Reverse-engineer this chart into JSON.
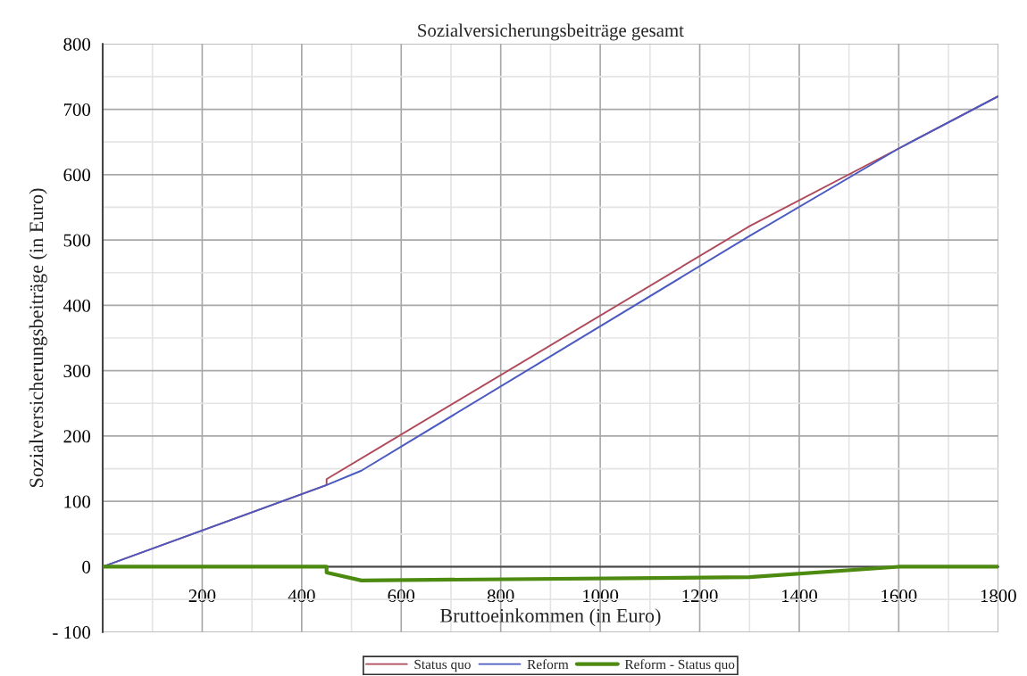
{
  "chart_data": {
    "type": "line",
    "title": "Sozialversicherungsbeiträge gesamt",
    "xlabel": "Bruttoeinkommen (in Euro)",
    "ylabel": "Sozialversicherungsbeiträge (in Euro)",
    "series": [
      {
        "name": "Status quo",
        "color": "#b04a5a",
        "x": [
          0,
          450,
          450,
          1300,
          1600,
          1800
        ],
        "values": [
          0,
          125,
          134,
          521,
          640,
          720
        ]
      },
      {
        "name": "Reform",
        "color": "#4a5ac0",
        "x": [
          0,
          450,
          520,
          1300,
          1600,
          1800
        ],
        "values": [
          0,
          125,
          147,
          506,
          640,
          720
        ]
      },
      {
        "name": "Reform - Status quo",
        "color": "#4c8a10",
        "x": [
          0,
          450,
          450,
          520,
          1300,
          1600,
          1800
        ],
        "values": [
          0,
          0,
          -9,
          -21,
          -16,
          0,
          0
        ]
      }
    ],
    "xlim": [
      0,
      1800
    ],
    "xticks": [
      {
        "value": 0,
        "label": null
      },
      200,
      400,
      600,
      800,
      1000,
      1200,
      1400,
      1600,
      1800
    ],
    "ylim": [
      -100,
      800
    ],
    "yticks": [
      {
        "value": -100,
        "label": "- 100"
      },
      0,
      100,
      200,
      300,
      400,
      500,
      600,
      700,
      800
    ],
    "grid": true,
    "legend": "bottom",
    "marker": "none",
    "line_style": "solid"
  }
}
